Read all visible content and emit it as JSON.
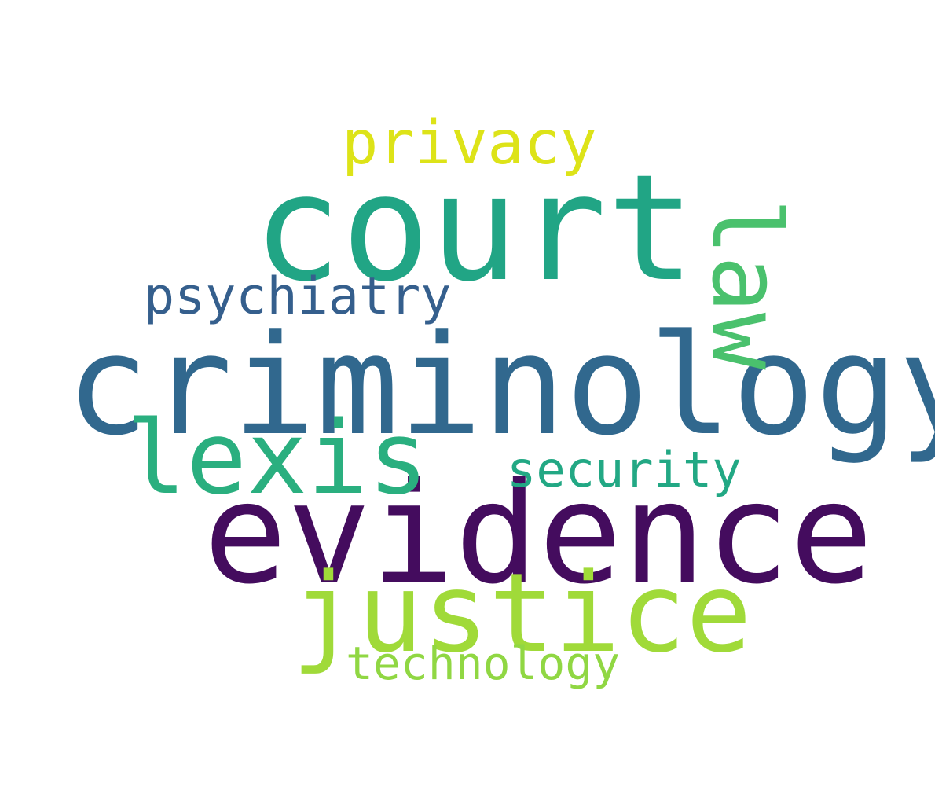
{
  "words": [
    {
      "text": "court",
      "color": "#21a585"
    },
    {
      "text": "criminology",
      "color": "#31688e"
    },
    {
      "text": "evidence",
      "color": "#440c5e"
    },
    {
      "text": "justice",
      "color": "#a0da39"
    },
    {
      "text": "lexis",
      "color": "#2aaf7f"
    },
    {
      "text": "law",
      "color": "#4ac16d"
    },
    {
      "text": "privacy",
      "color": "#dde318"
    },
    {
      "text": "psychiatry",
      "color": "#355f8d"
    },
    {
      "text": "security",
      "color": "#22a884"
    },
    {
      "text": "technology",
      "color": "#90d743"
    }
  ]
}
